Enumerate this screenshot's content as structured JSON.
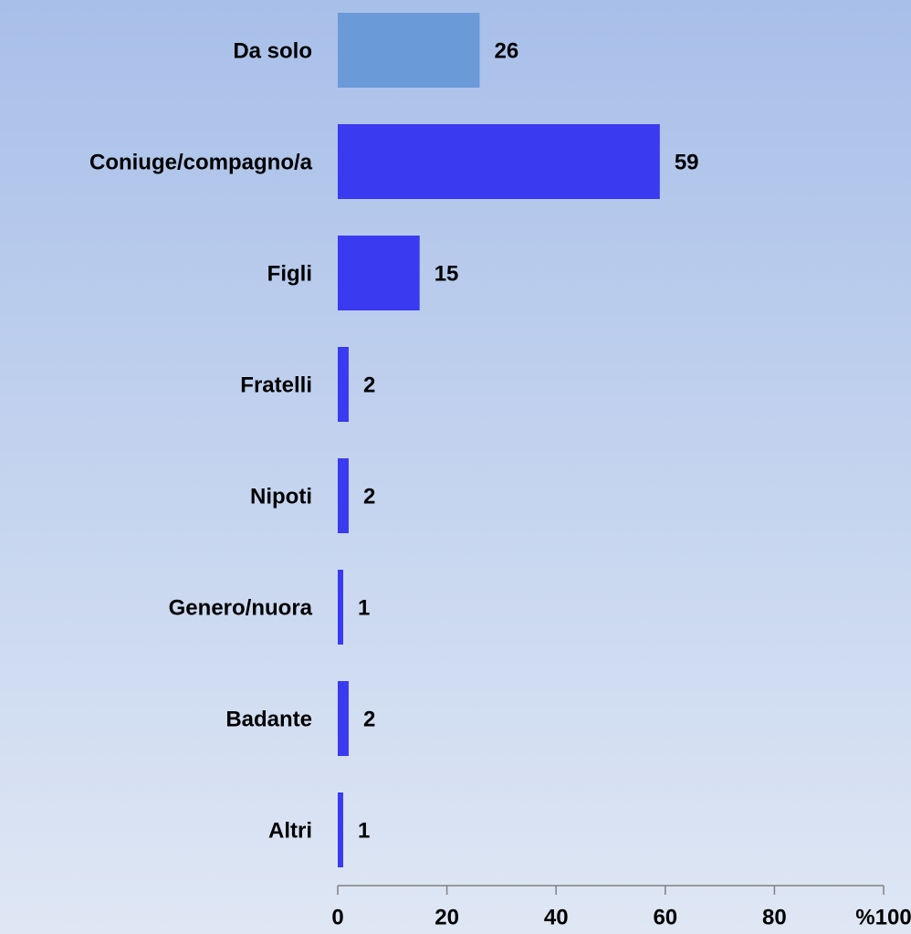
{
  "chart_data": {
    "type": "bar",
    "orientation": "horizontal",
    "categories": [
      "Da solo",
      "Coniuge/compagno/a",
      "Figli",
      "Fratelli",
      "Nipoti",
      "Genero/nuora",
      "Badante",
      "Altri"
    ],
    "values": [
      26,
      59,
      15,
      2,
      2,
      1,
      2,
      1
    ],
    "colors": [
      "#6b9ad9",
      "#3a3af0",
      "#3a3af0",
      "#3a3af0",
      "#3a3af0",
      "#3a3af0",
      "#3a3af0",
      "#3a3af0"
    ],
    "xlim": [
      0,
      100
    ],
    "xticks": [
      0,
      20,
      40,
      60,
      80,
      {
        "value": 100,
        "label": "%100"
      }
    ]
  }
}
